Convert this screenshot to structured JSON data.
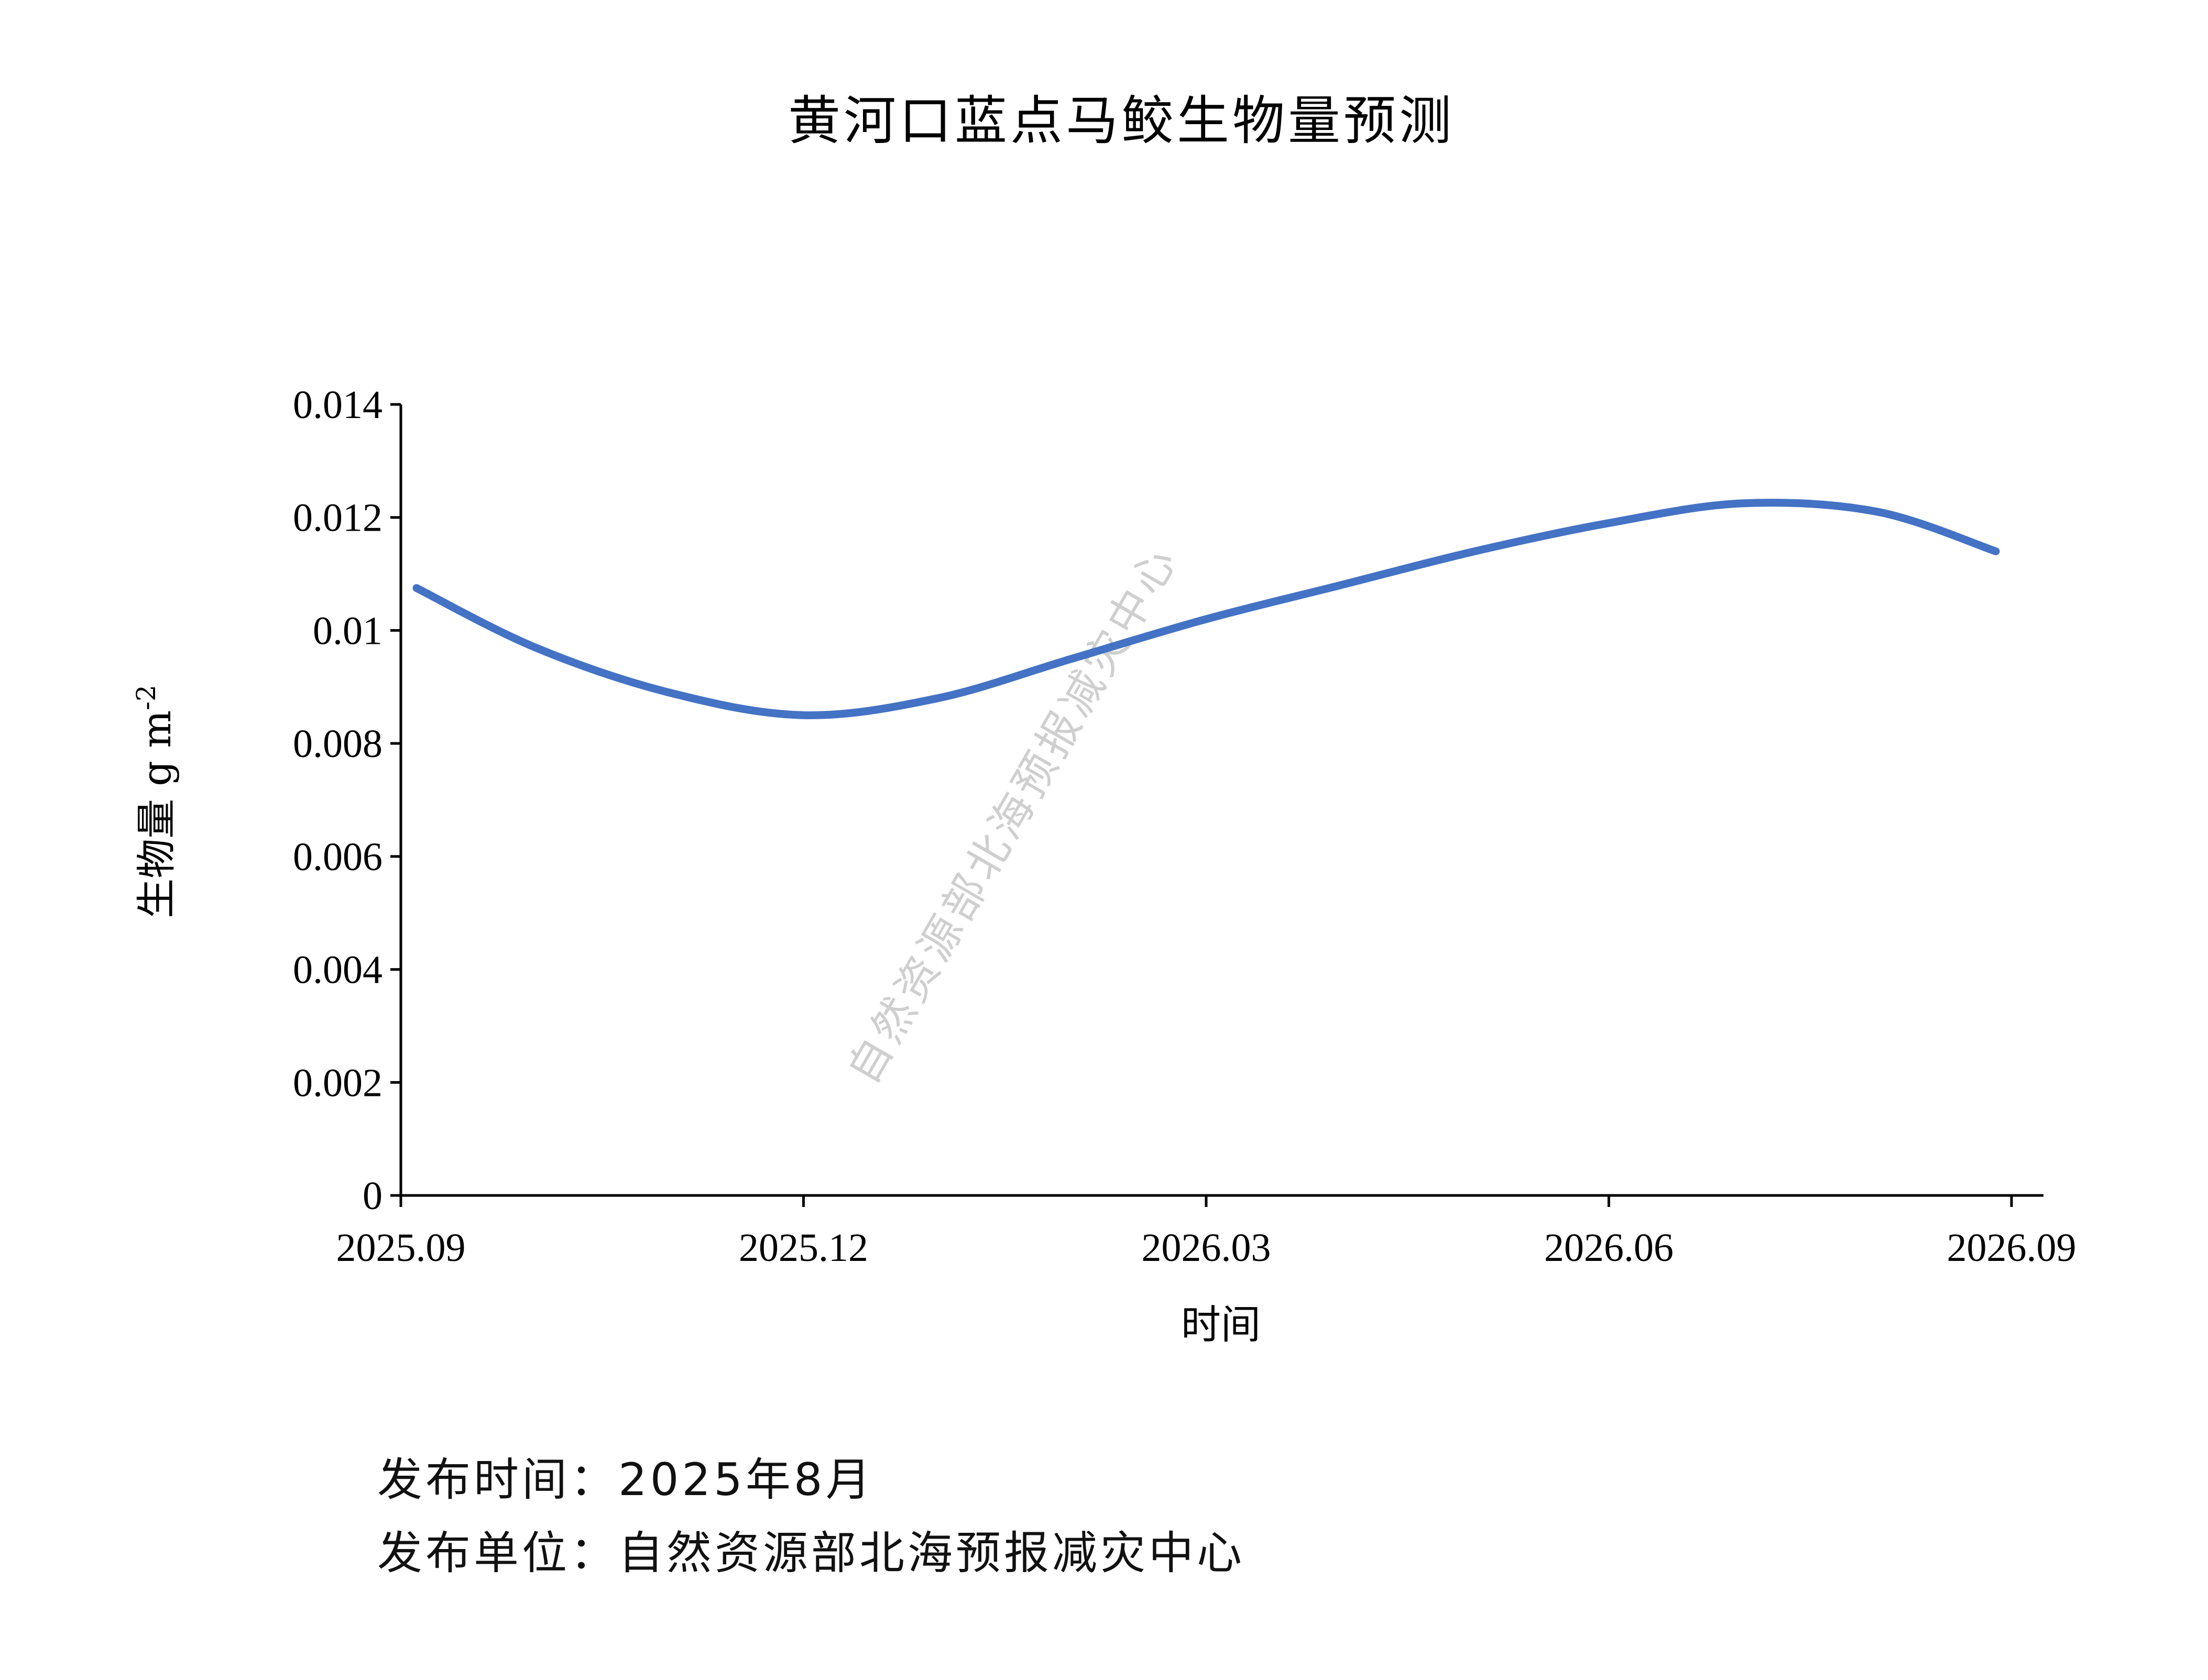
{
  "chart_data": {
    "type": "line",
    "title": "黄河口蓝点马鲛生物量预测",
    "xlabel": "时间",
    "ylabel": "生物量 g m",
    "ylabel_superscript": "-2",
    "x_ticks": [
      "2025.09",
      "2025.12",
      "2026.03",
      "2026.06",
      "2026.09"
    ],
    "y_ticks": [
      "0",
      "0.002",
      "0.004",
      "0.006",
      "0.008",
      "0.01",
      "0.012",
      "0.014"
    ],
    "ylim": [
      0,
      0.014
    ],
    "xlim": [
      "2025.09",
      "2026.09"
    ],
    "grid": false,
    "line_color": "#4472C4",
    "series": [
      {
        "x": [
          "2025.09",
          "2025.10",
          "2025.11",
          "2025.12",
          "2026.01",
          "2026.02",
          "2026.03",
          "2026.04",
          "2026.05",
          "2026.06",
          "2026.07",
          "2026.08",
          "2026.09"
        ],
        "values": [
          0.01075,
          0.0097,
          0.0089,
          0.0085,
          0.0088,
          0.0095,
          0.0102,
          0.0108,
          0.0114,
          0.0119,
          0.01225,
          0.0121,
          0.0114
        ]
      }
    ]
  },
  "watermark": "自然资源部北海预报减灾中心",
  "footer": {
    "publish_time": "发布时间：2025年8月",
    "publisher": "发布单位：自然资源部北海预报减灾中心"
  }
}
